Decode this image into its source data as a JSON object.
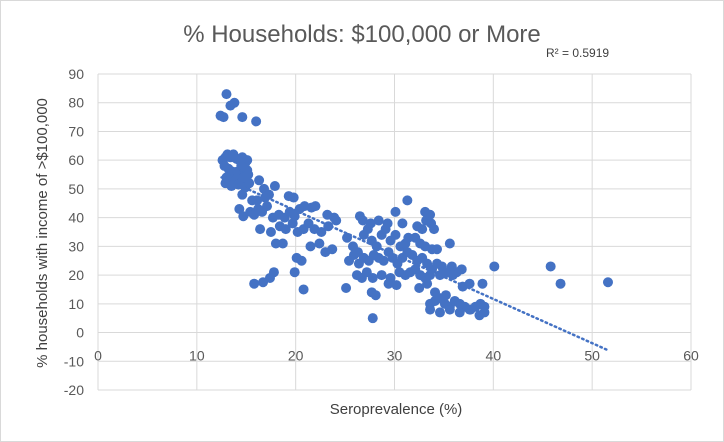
{
  "chart_data": {
    "type": "scatter",
    "title": "% Households: $100,000 or More",
    "xlabel": "Seroprevalence (%)",
    "ylabel": "% households with income of >$100,000",
    "annotation": "R² = 0.5919",
    "xlim": [
      0,
      60
    ],
    "ylim": [
      -20,
      90
    ],
    "xticks": [
      "0",
      "10",
      "20",
      "30",
      "40",
      "50",
      "60"
    ],
    "yticks": [
      "-20",
      "-10",
      "0",
      "10",
      "20",
      "30",
      "40",
      "50",
      "60",
      "70",
      "80",
      "90"
    ],
    "grid": true,
    "legend": "none",
    "marker_color": "#4472c4",
    "trendline": {
      "style": "dotted",
      "x": [
        12.5,
        51.5
      ],
      "y": [
        54,
        -6
      ]
    },
    "points": [
      [
        13.0,
        83
      ],
      [
        13.4,
        79
      ],
      [
        13.8,
        80
      ],
      [
        12.4,
        75.5
      ],
      [
        12.7,
        75
      ],
      [
        14.6,
        75
      ],
      [
        16.0,
        73.5
      ],
      [
        12.6,
        60
      ],
      [
        12.9,
        61
      ],
      [
        13.1,
        62
      ],
      [
        13.4,
        61
      ],
      [
        13.7,
        62
      ],
      [
        14.0,
        60.5
      ],
      [
        14.3,
        60
      ],
      [
        14.6,
        61
      ],
      [
        14.9,
        59
      ],
      [
        15.1,
        60
      ],
      [
        12.8,
        58
      ],
      [
        13.2,
        57
      ],
      [
        13.6,
        56
      ],
      [
        14.1,
        56
      ],
      [
        14.5,
        58
      ],
      [
        14.8,
        55
      ],
      [
        15.1,
        56.5
      ],
      [
        13.0,
        54
      ],
      [
        13.3,
        53
      ],
      [
        13.9,
        53
      ],
      [
        14.4,
        52
      ],
      [
        14.7,
        54
      ],
      [
        15.2,
        55
      ],
      [
        12.9,
        52
      ],
      [
        13.5,
        51
      ],
      [
        14.2,
        51.5
      ],
      [
        14.9,
        50.5
      ],
      [
        15.3,
        52
      ],
      [
        16.3,
        53
      ],
      [
        16.8,
        50
      ],
      [
        17.3,
        48
      ],
      [
        17.9,
        51
      ],
      [
        14.6,
        48
      ],
      [
        15.6,
        46
      ],
      [
        16.1,
        46
      ],
      [
        16.9,
        47
      ],
      [
        19.3,
        47.5
      ],
      [
        19.8,
        47
      ],
      [
        14.3,
        43
      ],
      [
        14.7,
        40.5
      ],
      [
        15.4,
        42
      ],
      [
        15.8,
        41
      ],
      [
        16.2,
        43
      ],
      [
        16.6,
        42
      ],
      [
        17.1,
        44
      ],
      [
        17.7,
        40
      ],
      [
        18.3,
        41
      ],
      [
        18.9,
        40
      ],
      [
        19.4,
        42
      ],
      [
        19.9,
        40.5
      ],
      [
        20.4,
        43
      ],
      [
        20.9,
        44
      ],
      [
        21.6,
        43.5
      ],
      [
        22.0,
        44
      ],
      [
        23.2,
        41
      ],
      [
        23.9,
        40
      ],
      [
        16.4,
        36
      ],
      [
        17.5,
        35
      ],
      [
        18.4,
        37
      ],
      [
        19.0,
        36
      ],
      [
        19.7,
        38
      ],
      [
        20.2,
        35
      ],
      [
        20.8,
        36
      ],
      [
        21.3,
        38
      ],
      [
        21.9,
        36
      ],
      [
        22.6,
        35
      ],
      [
        23.3,
        37
      ],
      [
        24.1,
        39
      ],
      [
        18.0,
        31
      ],
      [
        18.7,
        31
      ],
      [
        21.5,
        30
      ],
      [
        22.4,
        31
      ],
      [
        23.0,
        28
      ],
      [
        23.7,
        29
      ],
      [
        20.1,
        26
      ],
      [
        20.6,
        25
      ],
      [
        19.9,
        21
      ],
      [
        17.4,
        19
      ],
      [
        17.8,
        21
      ],
      [
        15.8,
        17
      ],
      [
        16.7,
        17.5
      ],
      [
        20.8,
        15
      ],
      [
        25.2,
        33
      ],
      [
        25.8,
        30
      ],
      [
        26.3,
        28
      ],
      [
        26.9,
        34
      ],
      [
        27.3,
        36
      ],
      [
        27.7,
        32
      ],
      [
        28.2,
        30
      ],
      [
        28.7,
        34
      ],
      [
        29.1,
        36
      ],
      [
        29.6,
        32
      ],
      [
        30.1,
        34
      ],
      [
        30.6,
        30
      ],
      [
        31.1,
        31
      ],
      [
        31.4,
        33
      ],
      [
        26.8,
        39
      ],
      [
        27.6,
        38
      ],
      [
        28.4,
        39
      ],
      [
        29.3,
        38
      ],
      [
        26.5,
        40.5
      ],
      [
        30.1,
        42
      ],
      [
        31.3,
        46
      ],
      [
        30.8,
        38
      ],
      [
        32.3,
        37
      ],
      [
        32.8,
        36
      ],
      [
        33.2,
        39
      ],
      [
        33.7,
        38
      ],
      [
        33.1,
        42
      ],
      [
        33.6,
        41
      ],
      [
        34.0,
        36
      ],
      [
        32.1,
        33
      ],
      [
        32.6,
        31
      ],
      [
        33.1,
        30
      ],
      [
        33.8,
        29
      ],
      [
        34.3,
        29
      ],
      [
        35.6,
        31
      ],
      [
        25.4,
        25
      ],
      [
        25.9,
        27
      ],
      [
        26.4,
        24
      ],
      [
        26.9,
        26
      ],
      [
        27.4,
        25
      ],
      [
        27.9,
        27
      ],
      [
        28.4,
        26
      ],
      [
        28.9,
        25
      ],
      [
        29.4,
        28
      ],
      [
        29.8,
        26
      ],
      [
        30.3,
        24
      ],
      [
        30.8,
        26
      ],
      [
        31.3,
        28
      ],
      [
        31.8,
        27
      ],
      [
        32.3,
        25
      ],
      [
        32.8,
        26
      ],
      [
        33.3,
        24
      ],
      [
        33.8,
        22
      ],
      [
        34.3,
        24
      ],
      [
        34.8,
        23
      ],
      [
        35.3,
        21
      ],
      [
        35.8,
        23
      ],
      [
        36.3,
        21
      ],
      [
        36.8,
        22
      ],
      [
        26.2,
        20
      ],
      [
        26.7,
        19
      ],
      [
        27.2,
        21
      ],
      [
        27.8,
        19
      ],
      [
        28.7,
        20
      ],
      [
        29.6,
        19
      ],
      [
        30.5,
        21
      ],
      [
        31.1,
        20
      ],
      [
        31.6,
        21
      ],
      [
        32.1,
        22
      ],
      [
        32.6,
        20
      ],
      [
        33.1,
        19
      ],
      [
        33.6,
        20
      ],
      [
        34.6,
        20
      ],
      [
        25.1,
        15.5
      ],
      [
        27.7,
        14
      ],
      [
        28.1,
        13
      ],
      [
        29.4,
        17
      ],
      [
        30.2,
        16.5
      ],
      [
        32.5,
        15.5
      ],
      [
        33.3,
        17
      ],
      [
        34.1,
        14
      ],
      [
        35.2,
        13
      ],
      [
        33.6,
        10
      ],
      [
        34.1,
        11
      ],
      [
        34.6,
        12
      ],
      [
        35.1,
        10
      ],
      [
        35.6,
        9
      ],
      [
        36.1,
        11
      ],
      [
        36.6,
        10
      ],
      [
        37.1,
        9
      ],
      [
        37.7,
        8
      ],
      [
        38.2,
        9
      ],
      [
        38.7,
        10
      ],
      [
        33.6,
        8
      ],
      [
        34.6,
        7
      ],
      [
        35.6,
        8
      ],
      [
        36.6,
        7
      ],
      [
        37.6,
        8
      ],
      [
        38.6,
        6
      ],
      [
        39.1,
        7
      ],
      [
        27.8,
        5
      ],
      [
        35.9,
        20
      ],
      [
        36.9,
        16
      ],
      [
        37.6,
        17
      ],
      [
        38.9,
        17
      ],
      [
        39.1,
        9
      ],
      [
        40.1,
        23
      ],
      [
        45.8,
        23
      ],
      [
        46.8,
        17
      ],
      [
        51.6,
        17.5
      ]
    ]
  }
}
